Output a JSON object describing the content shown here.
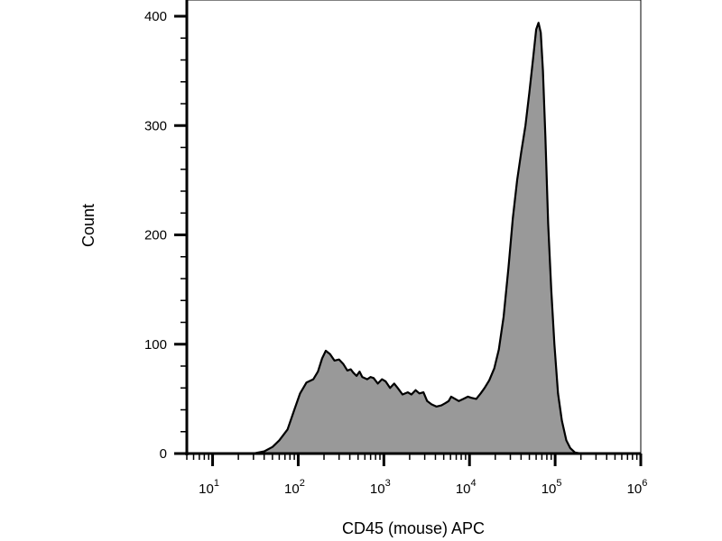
{
  "chart_data": {
    "type": "area",
    "xlabel": "CD45 (mouse) APC",
    "ylabel": "Count",
    "x_scale": "log",
    "xlim": [
      5,
      1000000
    ],
    "ylim": [
      0,
      400
    ],
    "grid": false,
    "legend": "none",
    "fill_color": "#999999",
    "stroke_color": "#000000",
    "x_ticks": [
      {
        "base": "10",
        "exp": "1",
        "value": 10
      },
      {
        "base": "10",
        "exp": "2",
        "value": 100
      },
      {
        "base": "10",
        "exp": "3",
        "value": 1000
      },
      {
        "base": "10",
        "exp": "4",
        "value": 10000
      },
      {
        "base": "10",
        "exp": "5",
        "value": 100000
      },
      {
        "base": "10",
        "exp": "6",
        "value": 1000000
      }
    ],
    "y_ticks": [
      {
        "label": "0",
        "value": 0
      },
      {
        "label": "100",
        "value": 100
      },
      {
        "label": "200",
        "value": 200
      },
      {
        "label": "300",
        "value": 300
      },
      {
        "label": "400",
        "value": 400
      }
    ],
    "series": [
      {
        "points": [
          [
            30,
            0
          ],
          [
            40,
            2
          ],
          [
            50,
            6
          ],
          [
            60,
            12
          ],
          [
            75,
            22
          ],
          [
            90,
            40
          ],
          [
            105,
            55
          ],
          [
            125,
            65
          ],
          [
            150,
            68
          ],
          [
            170,
            75
          ],
          [
            190,
            87
          ],
          [
            210,
            94
          ],
          [
            235,
            91
          ],
          [
            265,
            85
          ],
          [
            300,
            86
          ],
          [
            335,
            82
          ],
          [
            375,
            76
          ],
          [
            410,
            77
          ],
          [
            440,
            74
          ],
          [
            480,
            71
          ],
          [
            520,
            75
          ],
          [
            560,
            70
          ],
          [
            640,
            68
          ],
          [
            700,
            70
          ],
          [
            760,
            69
          ],
          [
            850,
            64
          ],
          [
            950,
            68
          ],
          [
            1050,
            66
          ],
          [
            1180,
            60
          ],
          [
            1320,
            64
          ],
          [
            1450,
            60
          ],
          [
            1650,
            54
          ],
          [
            1900,
            56
          ],
          [
            2100,
            54
          ],
          [
            2350,
            58
          ],
          [
            2600,
            55
          ],
          [
            2900,
            56
          ],
          [
            3200,
            48
          ],
          [
            3600,
            45
          ],
          [
            4100,
            43
          ],
          [
            4700,
            44
          ],
          [
            5200,
            46
          ],
          [
            5700,
            48
          ],
          [
            6100,
            52
          ],
          [
            6800,
            50
          ],
          [
            7500,
            48
          ],
          [
            8500,
            50
          ],
          [
            9600,
            52
          ],
          [
            10500,
            51
          ],
          [
            12000,
            50
          ],
          [
            13500,
            55
          ],
          [
            15000,
            60
          ],
          [
            17000,
            67
          ],
          [
            19500,
            78
          ],
          [
            22000,
            95
          ],
          [
            25000,
            125
          ],
          [
            28500,
            170
          ],
          [
            32000,
            215
          ],
          [
            36000,
            250
          ],
          [
            40000,
            275
          ],
          [
            45000,
            300
          ],
          [
            50000,
            330
          ],
          [
            55000,
            360
          ],
          [
            60000,
            388
          ],
          [
            64000,
            394
          ],
          [
            68000,
            385
          ],
          [
            72000,
            350
          ],
          [
            77000,
            290
          ],
          [
            83000,
            210
          ],
          [
            90000,
            150
          ],
          [
            98000,
            100
          ],
          [
            108000,
            55
          ],
          [
            120000,
            30
          ],
          [
            135000,
            12
          ],
          [
            150000,
            5
          ],
          [
            170000,
            1
          ],
          [
            200000,
            0
          ]
        ]
      }
    ]
  }
}
